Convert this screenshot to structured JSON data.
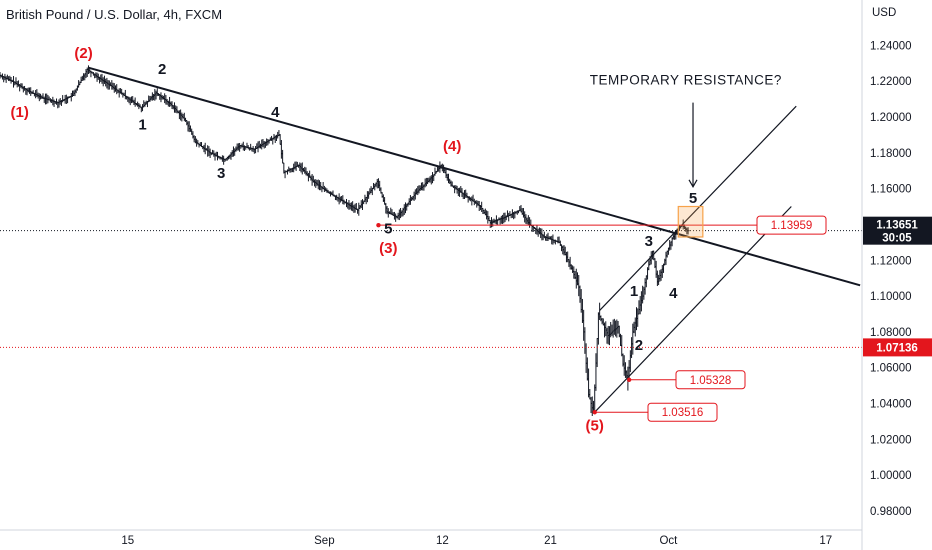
{
  "chart_title": "British Pound / U.S. Dollar, 4h, FXCM",
  "colors": {
    "red": "#e3161d",
    "black": "#131722",
    "grid_text": "#131722",
    "orange_box": "#f7a24a"
  },
  "chart_data": {
    "type": "line",
    "title": "British Pound / U.S. Dollar, 4h, FXCM",
    "currency_label": "USD",
    "ylim": [
      0.975,
      1.253
    ],
    "y_ticks": [
      "1.24000",
      "1.22000",
      "1.20000",
      "1.18000",
      "1.16000",
      "1.14000",
      "1.12000",
      "1.10000",
      "1.08000",
      "1.06000",
      "1.04000",
      "1.02000",
      "1.00000",
      "0.98000"
    ],
    "x_ticks": [
      {
        "label": "15",
        "bar": 26
      },
      {
        "label": "Sep",
        "bar": 66
      },
      {
        "label": "12",
        "bar": 90
      },
      {
        "label": "21",
        "bar": 112
      },
      {
        "label": "Oct",
        "bar": 136
      },
      {
        "label": "17",
        "bar": 168
      }
    ],
    "price_path": [
      [
        0,
        1.2235
      ],
      [
        3,
        1.2195
      ],
      [
        6,
        1.2145
      ],
      [
        9,
        1.2105
      ],
      [
        12,
        1.208
      ],
      [
        15,
        1.212
      ],
      [
        18,
        1.2265
      ],
      [
        20,
        1.2225
      ],
      [
        23,
        1.217
      ],
      [
        26,
        1.211
      ],
      [
        29,
        1.205
      ],
      [
        32,
        1.2135
      ],
      [
        35,
        1.207
      ],
      [
        38,
        1.198
      ],
      [
        40,
        1.186
      ],
      [
        43,
        1.18
      ],
      [
        46,
        1.176
      ],
      [
        49,
        1.184
      ],
      [
        52,
        1.182
      ],
      [
        55,
        1.187
      ],
      [
        57,
        1.19
      ],
      [
        58,
        1.169
      ],
      [
        61,
        1.173
      ],
      [
        64,
        1.164
      ],
      [
        67,
        1.158
      ],
      [
        70,
        1.153
      ],
      [
        73,
        1.148
      ],
      [
        75,
        1.156
      ],
      [
        77,
        1.164
      ],
      [
        79,
        1.147
      ],
      [
        81,
        1.144
      ],
      [
        83,
        1.151
      ],
      [
        85,
        1.158
      ],
      [
        88,
        1.166
      ],
      [
        90,
        1.173
      ],
      [
        92,
        1.162
      ],
      [
        95,
        1.156
      ],
      [
        98,
        1.15
      ],
      [
        100,
        1.141
      ],
      [
        103,
        1.144
      ],
      [
        106,
        1.148
      ],
      [
        108,
        1.14
      ],
      [
        111,
        1.133
      ],
      [
        114,
        1.13
      ],
      [
        116,
        1.119
      ],
      [
        118,
        1.105
      ],
      [
        119,
        1.08
      ],
      [
        120,
        1.045
      ],
      [
        121,
        1.0352
      ],
      [
        122,
        1.09
      ],
      [
        124,
        1.078
      ],
      [
        126,
        1.083
      ],
      [
        127,
        1.062
      ],
      [
        128,
        1.0533
      ],
      [
        129,
        1.08
      ],
      [
        130,
        1.09
      ],
      [
        131,
        1.1
      ],
      [
        132,
        1.115
      ],
      [
        133,
        1.125
      ],
      [
        134,
        1.108
      ],
      [
        135,
        1.115
      ],
      [
        136,
        1.125
      ],
      [
        137,
        1.132
      ],
      [
        138,
        1.137
      ],
      [
        139,
        1.1396
      ],
      [
        140,
        1.1365
      ]
    ],
    "trendline": {
      "from": [
        18,
        1.2275
      ],
      "to": [
        175,
        1.106
      ]
    },
    "channel_upper": {
      "from": [
        122,
        1.092
      ],
      "to": [
        162,
        1.206
      ]
    },
    "channel_lower": {
      "from": [
        121,
        1.0352
      ],
      "to": [
        161,
        1.15
      ]
    },
    "horizontal_levels": [
      {
        "value": 1.13959,
        "from_bar": 77,
        "label": "1.13959"
      },
      {
        "value": 1.05328,
        "from_bar": 128,
        "label": "1.05328"
      },
      {
        "value": 1.03516,
        "from_bar": 121,
        "label": "1.03516"
      }
    ],
    "current_price": {
      "value": "1.13651",
      "countdown": "30:05",
      "y": 1.13651
    },
    "marked_level": {
      "value": "1.07136",
      "y": 1.07136
    },
    "resistance_box": {
      "bar_from": 138,
      "bar_to": 143,
      "y_from": 1.133,
      "y_to": 1.15
    },
    "annotation": {
      "text": "TEMPORARY RESISTANCE?",
      "bar": 120,
      "y": 1.218,
      "arrow_bar": 141,
      "arrow_from": 1.208,
      "arrow_to": 1.161
    },
    "wave_labels": [
      {
        "text": "(2)",
        "bar": 17,
        "y": 1.233,
        "color": "red"
      },
      {
        "text": "(1)",
        "bar": 4,
        "y": 1.2,
        "color": "red"
      },
      {
        "text": "2",
        "bar": 33,
        "y": 1.224,
        "color": "black"
      },
      {
        "text": "1",
        "bar": 29,
        "y": 1.193,
        "color": "black"
      },
      {
        "text": "4",
        "bar": 56,
        "y": 1.2,
        "color": "black"
      },
      {
        "text": "3",
        "bar": 45,
        "y": 1.166,
        "color": "black"
      },
      {
        "text": "(4)",
        "bar": 92,
        "y": 1.181,
        "color": "red"
      },
      {
        "text": "5",
        "bar": 79,
        "y": 1.135,
        "color": "black"
      },
      {
        "text": "(3)",
        "bar": 79,
        "y": 1.124,
        "color": "red"
      },
      {
        "text": "(5)",
        "bar": 121,
        "y": 1.025,
        "color": "red"
      },
      {
        "text": "1",
        "bar": 129,
        "y": 1.1,
        "color": "black"
      },
      {
        "text": "2",
        "bar": 130,
        "y": 1.07,
        "color": "black"
      },
      {
        "text": "3",
        "bar": 132,
        "y": 1.128,
        "color": "black"
      },
      {
        "text": "4",
        "bar": 137,
        "y": 1.099,
        "color": "black"
      },
      {
        "text": "5",
        "bar": 141,
        "y": 1.152,
        "color": "black"
      }
    ]
  }
}
